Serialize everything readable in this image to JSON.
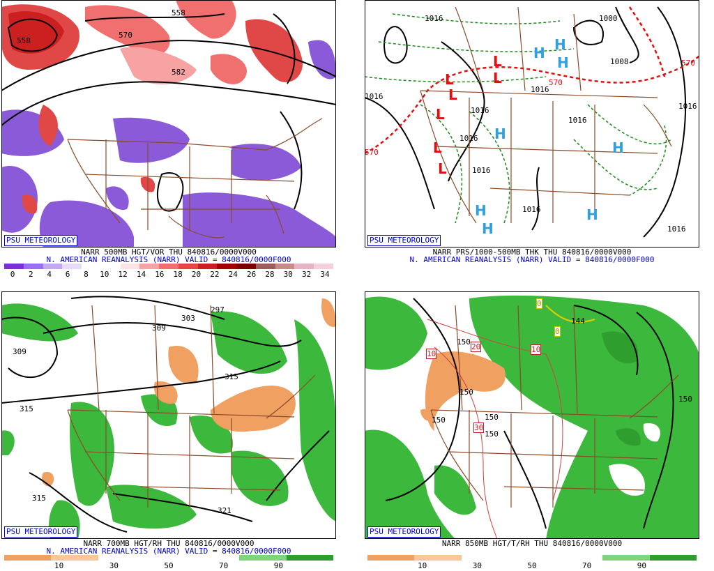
{
  "panels": [
    {
      "id": "vort500",
      "badge": "PSU METEOROLOGY",
      "title1": "NARR 500MB HGT/VOR THU 840816/0000V000",
      "title2": "N. AMERICAN REANALYSIS (NARR) VALID = 840816/0000F000",
      "colorbar": [
        "#7b2fd6",
        "#9a6ff0",
        "#c3a8f5",
        "#e6dcfa",
        "#ffffff",
        "#ffffff",
        "#fde3e3",
        "#f7a3a3",
        "#f07070",
        "#e64545",
        "#cc1f1f",
        "#a30000",
        "#7a0000",
        "#a05a5a",
        "#c98a8a",
        "#e8b4c4",
        "#f5d0dc"
      ],
      "ticks": [
        "0",
        "2",
        "4",
        "6",
        "8",
        "10",
        "12",
        "14",
        "16",
        "18",
        "20",
        "22",
        "24",
        "26",
        "28",
        "30",
        "32",
        "34"
      ],
      "labels": [
        "558",
        "570",
        "582",
        "558"
      ]
    },
    {
      "id": "thk",
      "badge": "PSU METEOROLOGY",
      "title1": "NARR PRS/1000-500MB THK THU 840816/0000V000",
      "title2": "N. AMERICAN REANALYSIS (NARR) VALID = 840816/0000F000",
      "labels": [
        "1016",
        "1008",
        "1016",
        "1016",
        "1016",
        "1016",
        "1016",
        "1016",
        "1016",
        "1016",
        "1016",
        "1000",
        "570",
        "570",
        "570"
      ]
    },
    {
      "id": "rh700",
      "badge": "PSU METEOROLOGY",
      "title1": "NARR 700MB HGT/RH THU 840816/0000V000",
      "title2": "N. AMERICAN REANALYSIS (NARR) VALID = 840816/0000F000",
      "colorbar": [
        "#f0a060",
        "#f8c89a",
        "#ffffff",
        "#ffffff",
        "#ffffff",
        "#7fd47f",
        "#2e9e2e"
      ],
      "ticks": [
        "10",
        "30",
        "50",
        "70",
        "90"
      ],
      "labels": [
        "309",
        "303",
        "297",
        "309",
        "315",
        "315",
        "315",
        "321"
      ]
    },
    {
      "id": "rh850",
      "badge": "PSU METEOROLOGY",
      "title1": "NARR 850MB HGT/T/RH THU 840816/0000V000",
      "title2": "",
      "colorbar": [
        "#f0a060",
        "#f8c89a",
        "#ffffff",
        "#ffffff",
        "#ffffff",
        "#7fd47f",
        "#2e9e2e"
      ],
      "ticks": [
        "10",
        "30",
        "50",
        "70",
        "90"
      ],
      "labels": [
        "150",
        "150",
        "150",
        "150",
        "150",
        "150",
        "144",
        "20",
        "10",
        "10",
        "30",
        "0",
        "0"
      ]
    }
  ],
  "legend_colors": {
    "vort_neg": "#8a5ad8",
    "vort_pos": "#e04848",
    "rh_moist": "#3cb83c",
    "rh_dry": "#f0a060",
    "highs": "#30a0e0",
    "lows": "#e01010",
    "borders": "#8b4a2a"
  }
}
